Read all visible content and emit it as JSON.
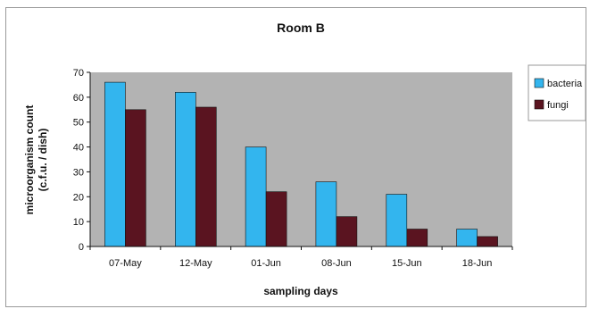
{
  "chart_data": {
    "type": "bar",
    "title": "Room B",
    "xlabel": "sampling days",
    "ylabel_lines": [
      "microorganism count",
      "(c.f.u. / dish)"
    ],
    "categories": [
      "07-May",
      "12-May",
      "01-Jun",
      "08-Jun",
      "15-Jun",
      "18-Jun"
    ],
    "series": [
      {
        "name": "bacteria",
        "color": "#33b5ee",
        "values": [
          66,
          62,
          40,
          26,
          21,
          7
        ]
      },
      {
        "name": "fungi",
        "color": "#5a1420",
        "values": [
          55,
          56,
          22,
          12,
          7,
          4
        ]
      }
    ],
    "ylim": [
      0,
      70
    ],
    "yticks": [
      0,
      10,
      20,
      30,
      40,
      50,
      60,
      70
    ],
    "grid": false,
    "plot_background": "#b3b3b3",
    "legend_position": "right"
  }
}
